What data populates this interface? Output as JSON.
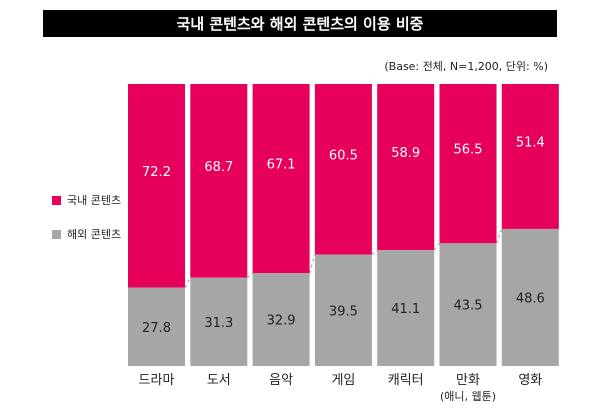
{
  "title": "국내 콘텐츠와 해외 콘텐츠의 이용 비중",
  "base_note": "(Base: 전체, N=1,200, 단위: %)",
  "colors": {
    "domestic": "#e6005c",
    "foreign": "#a6a6a6",
    "title_bg": "#000000"
  },
  "chart_data": {
    "type": "bar",
    "stacked": true,
    "title": "국내 콘텐츠와 해외 콘텐츠의 이용 비중",
    "categories": [
      {
        "label": "드라마",
        "sub": ""
      },
      {
        "label": "도서",
        "sub": ""
      },
      {
        "label": "음악",
        "sub": ""
      },
      {
        "label": "게임",
        "sub": ""
      },
      {
        "label": "캐릭터",
        "sub": ""
      },
      {
        "label": "만화",
        "sub": "(애니, 웹툰)"
      },
      {
        "label": "영화",
        "sub": ""
      }
    ],
    "series": [
      {
        "name": "국내 콘텐츠",
        "color": "#e6005c",
        "values": [
          "72.2",
          "68.7",
          "67.1",
          "60.5",
          "58.9",
          "56.5",
          "51.4"
        ]
      },
      {
        "name": "해외 콘텐츠",
        "color": "#a6a6a6",
        "values": [
          "27.8",
          "31.3",
          "32.9",
          "39.5",
          "41.1",
          "43.5",
          "48.6"
        ]
      }
    ],
    "ylim": [
      0,
      100
    ],
    "legend_position": "left",
    "grid": false,
    "connector_lines": "dashed"
  }
}
